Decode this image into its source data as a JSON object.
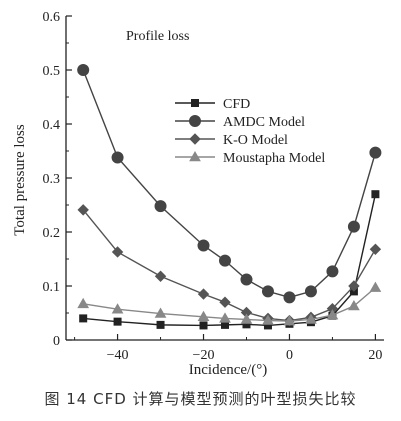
{
  "chart_data": {
    "type": "line",
    "annotation": "Profile loss",
    "xlabel": "Incidence/(°)",
    "ylabel": "Total pressure loss",
    "xlim": [
      -52,
      22
    ],
    "ylim": [
      0,
      0.6
    ],
    "x_ticks": [
      -40,
      -20,
      0,
      20
    ],
    "y_ticks": [
      0,
      0.1,
      0.2,
      0.3,
      0.4,
      0.5,
      0.6
    ],
    "legend_position": "center-right",
    "series": [
      {
        "name": "CFD",
        "marker": "square",
        "color": "#222222",
        "x": [
          -48,
          -40,
          -30,
          -20,
          -15,
          -10,
          -5,
          0,
          5,
          10,
          15,
          20
        ],
        "y": [
          0.04,
          0.034,
          0.028,
          0.027,
          0.028,
          0.029,
          0.027,
          0.03,
          0.033,
          0.045,
          0.09,
          0.27
        ]
      },
      {
        "name": "AMDC Model",
        "marker": "circle",
        "color": "#444444",
        "x": [
          -48,
          -40,
          -30,
          -20,
          -15,
          -10,
          -5,
          0,
          5,
          10,
          15,
          20
        ],
        "y": [
          0.5,
          0.338,
          0.248,
          0.175,
          0.147,
          0.112,
          0.09,
          0.079,
          0.09,
          0.127,
          0.21,
          0.347
        ]
      },
      {
        "name": "K-O Model",
        "marker": "diamond",
        "color": "#555555",
        "x": [
          -48,
          -40,
          -30,
          -20,
          -15,
          -10,
          -5,
          0,
          5,
          10,
          15,
          20
        ],
        "y": [
          0.241,
          0.163,
          0.118,
          0.085,
          0.07,
          0.051,
          0.04,
          0.036,
          0.042,
          0.058,
          0.1,
          0.168
        ]
      },
      {
        "name": "Moustapha Model",
        "marker": "triangle",
        "color": "#888888",
        "x": [
          -48,
          -40,
          -30,
          -20,
          -15,
          -10,
          -5,
          0,
          5,
          10,
          15,
          20
        ],
        "y": [
          0.067,
          0.057,
          0.049,
          0.043,
          0.04,
          0.038,
          0.036,
          0.035,
          0.038,
          0.046,
          0.063,
          0.097
        ]
      }
    ]
  },
  "caption": "图 14   CFD 计算与模型预测的叶型损失比较"
}
